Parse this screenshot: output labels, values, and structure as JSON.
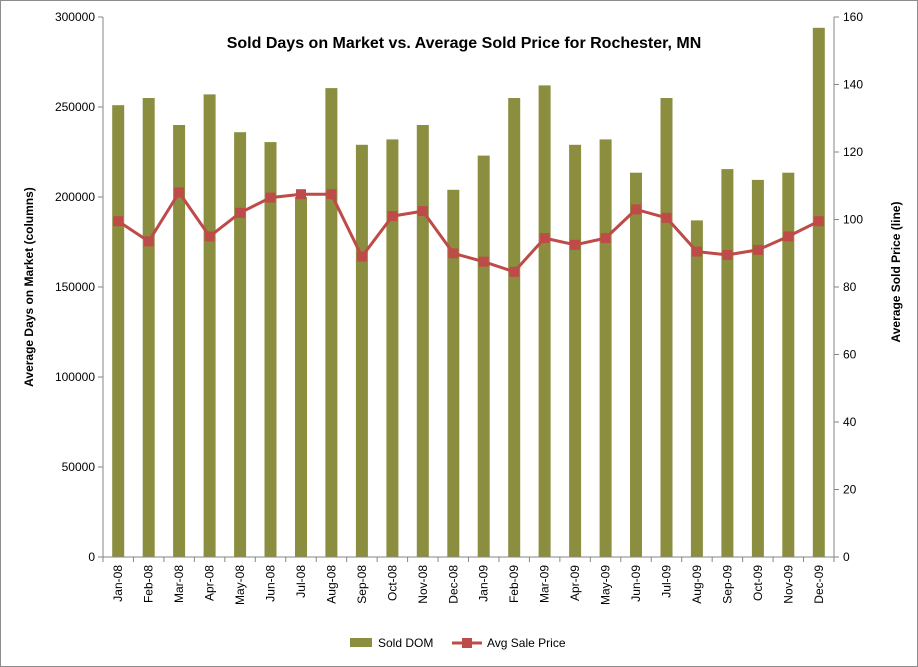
{
  "chart_data": {
    "type": "bar",
    "title": "Sold Days on Market vs. Average Sold Price for Rochester, MN",
    "ylabel": "Average Days on Market (columns)",
    "y2label": "Average Sold Price (line)",
    "xlabel": "",
    "categories": [
      "Jan-08",
      "Feb-08",
      "Mar-08",
      "Apr-08",
      "May-08",
      "Jun-08",
      "Jul-08",
      "Aug-08",
      "Sep-08",
      "Oct-08",
      "Nov-08",
      "Dec-08",
      "Jan-09",
      "Feb-09",
      "Mar-09",
      "Apr-09",
      "May-09",
      "Jun-09",
      "Jul-09",
      "Aug-09",
      "Sep-09",
      "Oct-09",
      "Nov-09",
      "Dec-09"
    ],
    "ylim": [
      0,
      300000
    ],
    "y2lim": [
      0,
      160
    ],
    "yticks": [
      "0",
      "50000",
      "100000",
      "150000",
      "200000",
      "250000",
      "300000"
    ],
    "y2ticks": [
      "0",
      "20",
      "40",
      "60",
      "80",
      "100",
      "120",
      "140",
      "160"
    ],
    "grid": false,
    "legend_position": "bottom",
    "series": [
      {
        "name": "Sold DOM",
        "type": "bar",
        "axis": "primary",
        "color": "#8b8e3f",
        "values": [
          251000,
          255000,
          240000,
          257000,
          236000,
          230500,
          200000,
          260500,
          229000,
          232000,
          240000,
          204000,
          223000,
          255000,
          262000,
          229000,
          232000,
          213500,
          255000,
          187000,
          215500,
          209500,
          213500,
          294000
        ]
      },
      {
        "name": "Avg Sale Price",
        "type": "line",
        "axis": "secondary",
        "color": "#be4b48",
        "marker": "square",
        "values": [
          99.5,
          93.5,
          108,
          95,
          102,
          106.5,
          107.5,
          107.5,
          89,
          101,
          102.5,
          90,
          87.5,
          84.5,
          94.5,
          92.5,
          94.5,
          103,
          100.5,
          90.5,
          89.5,
          91,
          95,
          99.5
        ]
      }
    ]
  }
}
